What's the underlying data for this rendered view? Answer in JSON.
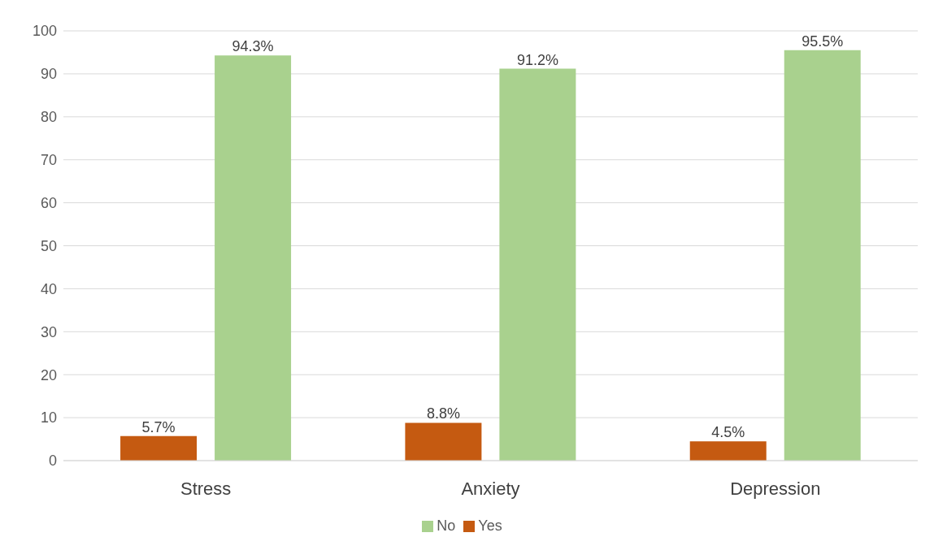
{
  "chart_data": {
    "type": "bar",
    "categories": [
      "Stress",
      "Anxiety",
      "Depression"
    ],
    "series": [
      {
        "name": "Yes",
        "color": "#c55a11",
        "values": [
          5.7,
          8.8,
          4.5
        ],
        "value_labels": [
          "5.7%",
          "8.8%",
          "4.5%"
        ]
      },
      {
        "name": "No",
        "color": "#a9d18e",
        "values": [
          94.3,
          91.2,
          95.5
        ],
        "value_labels": [
          "94.3%",
          "91.2%",
          "95.5%"
        ]
      }
    ],
    "ylim": [
      0,
      100
    ],
    "yticks": [
      0,
      10,
      20,
      30,
      40,
      50,
      60,
      70,
      80,
      90,
      100
    ],
    "grid": "y",
    "legend": "bottom"
  }
}
